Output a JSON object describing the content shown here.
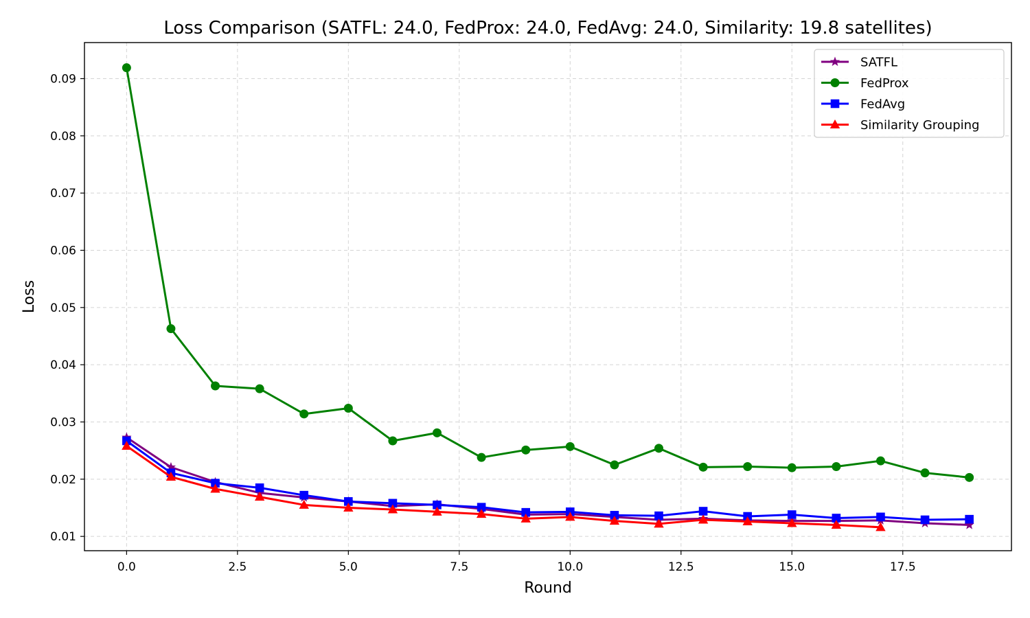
{
  "chart_data": {
    "type": "line",
    "title": "Loss Comparison (SATFL: 24.0, FedProx: 24.0, FedAvg: 24.0, Similarity: 19.8 satellites)",
    "xlabel": "Round",
    "ylabel": "Loss",
    "xlim": [
      -0.95,
      19.95
    ],
    "ylim": [
      0.0075,
      0.0963
    ],
    "x_ticks": [
      0.0,
      2.5,
      5.0,
      7.5,
      10.0,
      12.5,
      15.0,
      17.5
    ],
    "x_tick_labels": [
      "0.0",
      "2.5",
      "5.0",
      "7.5",
      "10.0",
      "12.5",
      "15.0",
      "17.5"
    ],
    "y_ticks": [
      0.01,
      0.02,
      0.03,
      0.04,
      0.05,
      0.06,
      0.07,
      0.08,
      0.09
    ],
    "y_tick_labels": [
      "0.01",
      "0.02",
      "0.03",
      "0.04",
      "0.05",
      "0.06",
      "0.07",
      "0.08",
      "0.09"
    ],
    "grid": true,
    "legend_position": "top-right",
    "series": [
      {
        "name": "SATFL",
        "color": "#800080",
        "marker": "star",
        "x": [
          0,
          1,
          2,
          3,
          4,
          5,
          6,
          7,
          8,
          9,
          10,
          11,
          12,
          13,
          14,
          15,
          16,
          17,
          18,
          19
        ],
        "values": [
          0.0273,
          0.0221,
          0.0195,
          0.0176,
          0.0168,
          0.0161,
          0.0153,
          0.0156,
          0.0148,
          0.0138,
          0.0139,
          0.0134,
          0.0129,
          0.0131,
          0.0128,
          0.0127,
          0.0127,
          0.0128,
          0.0123,
          0.012
        ]
      },
      {
        "name": "FedProx",
        "color": "#008000",
        "marker": "circle",
        "x": [
          0,
          1,
          2,
          3,
          4,
          5,
          6,
          7,
          8,
          9,
          10,
          11,
          12,
          13,
          14,
          15,
          16,
          17,
          18,
          19
        ],
        "values": [
          0.0919,
          0.0463,
          0.0363,
          0.0358,
          0.0314,
          0.0324,
          0.0267,
          0.0281,
          0.0238,
          0.0251,
          0.0257,
          0.0225,
          0.0254,
          0.0221,
          0.0222,
          0.022,
          0.0222,
          0.0232,
          0.0211,
          0.0203
        ]
      },
      {
        "name": "FedAvg",
        "color": "#0000ff",
        "marker": "square",
        "x": [
          0,
          1,
          2,
          3,
          4,
          5,
          6,
          7,
          8,
          9,
          10,
          11,
          12,
          13,
          14,
          15,
          16,
          17,
          18,
          19
        ],
        "values": [
          0.0267,
          0.0211,
          0.0193,
          0.0185,
          0.0172,
          0.0161,
          0.0158,
          0.0155,
          0.0151,
          0.0142,
          0.0143,
          0.0137,
          0.0136,
          0.0144,
          0.0135,
          0.0138,
          0.0132,
          0.0134,
          0.0129,
          0.013
        ]
      },
      {
        "name": "Similarity Grouping",
        "color": "#ff0000",
        "marker": "triangle",
        "x": [
          0,
          1,
          2,
          3,
          4,
          5,
          6,
          7,
          8,
          9,
          10,
          11,
          12,
          13,
          14,
          15,
          16,
          17
        ],
        "values": [
          0.0258,
          0.0204,
          0.0183,
          0.0169,
          0.0155,
          0.015,
          0.0147,
          0.0143,
          0.0139,
          0.0131,
          0.0134,
          0.0127,
          0.0122,
          0.0129,
          0.0126,
          0.0123,
          0.012,
          0.0116
        ]
      }
    ]
  }
}
